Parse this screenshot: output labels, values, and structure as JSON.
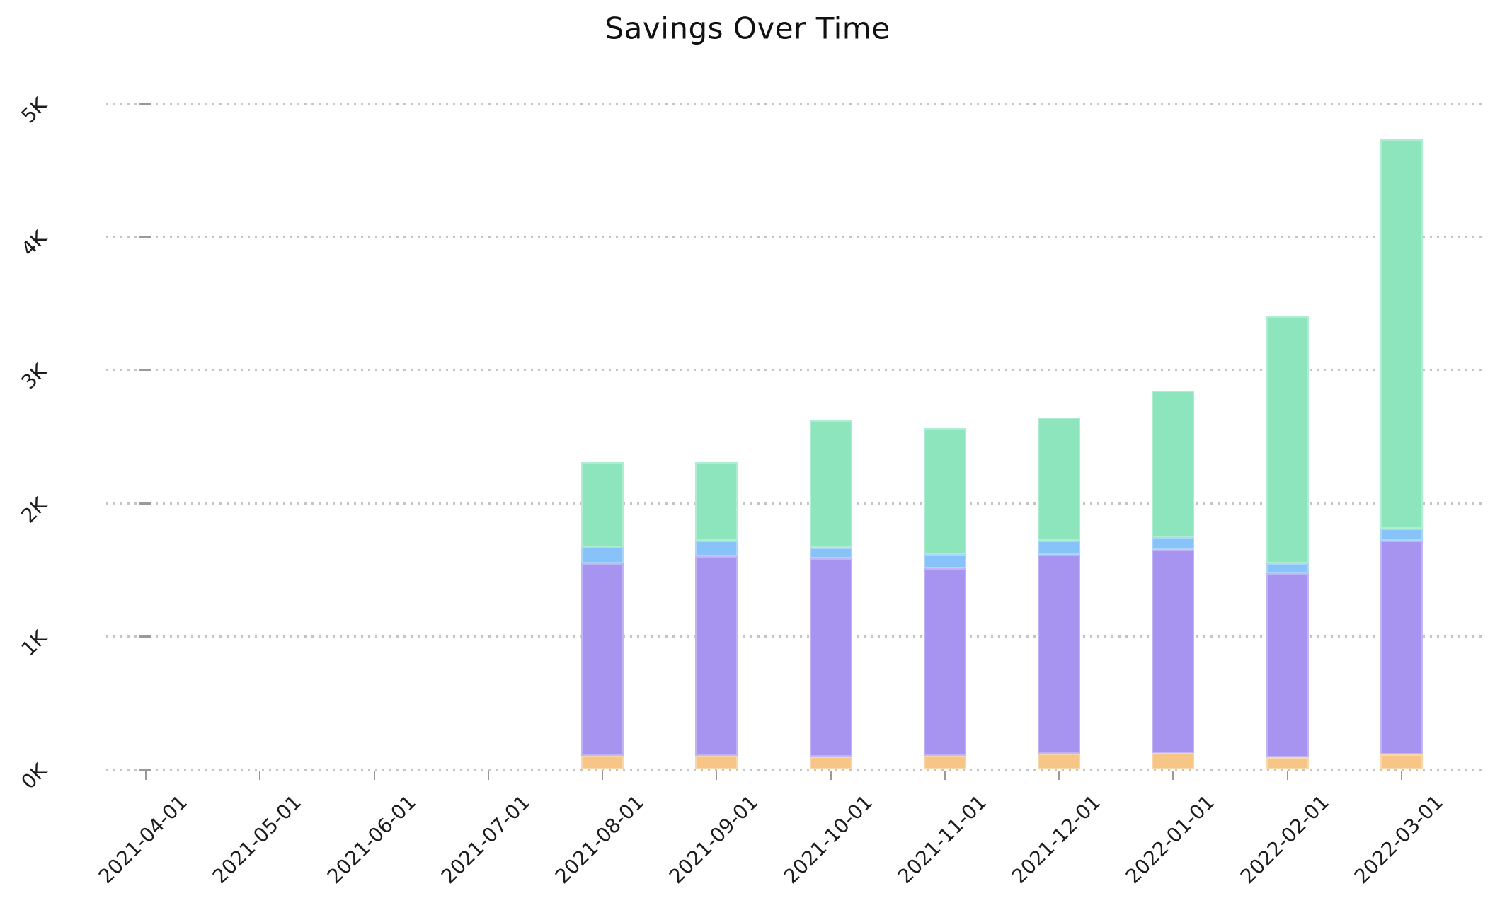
{
  "title": "Savings Over Time",
  "chart_data": {
    "type": "bar",
    "stacked": true,
    "title": "Savings Over Time",
    "xlabel": "",
    "ylabel": "",
    "categories": [
      "2021-04-01",
      "2021-05-01",
      "2021-06-01",
      "2021-07-01",
      "2021-08-01",
      "2021-09-01",
      "2021-10-01",
      "2021-11-01",
      "2021-12-01",
      "2022-01-01",
      "2022-02-01",
      "2022-03-01"
    ],
    "series": [
      {
        "name": "orange-segment",
        "color": "#f7c687",
        "values": [
          0,
          0,
          0,
          0,
          100,
          100,
          95,
          100,
          115,
          120,
          90,
          110
        ]
      },
      {
        "name": "purple-segment",
        "color": "#a794f1",
        "values": [
          0,
          0,
          0,
          0,
          1445,
          1500,
          1490,
          1410,
          1495,
          1525,
          1380,
          1605
        ]
      },
      {
        "name": "blue-segment",
        "color": "#87c3f8",
        "values": [
          0,
          0,
          0,
          0,
          125,
          115,
          80,
          105,
          105,
          100,
          75,
          90
        ]
      },
      {
        "name": "green-segment",
        "color": "#8ce5bc",
        "values": [
          0,
          0,
          0,
          0,
          635,
          590,
          955,
          945,
          925,
          1100,
          1855,
          2925
        ]
      }
    ],
    "stack_totals": [
      0,
      0,
      0,
      0,
      2305,
      2305,
      2620,
      2560,
      2640,
      2845,
      3400,
      4730
    ],
    "y_ticks": [
      "0K",
      "1K",
      "2K",
      "3K",
      "4K",
      "5K"
    ],
    "ylim": [
      0,
      5000
    ],
    "grid": "horizontal-dotted",
    "legend": "none"
  },
  "colors": {
    "background": "#ffffff",
    "grid": "#c4c4c4",
    "tick": "#999999",
    "tick_label": "#1c1c1c",
    "title": "#111111"
  }
}
